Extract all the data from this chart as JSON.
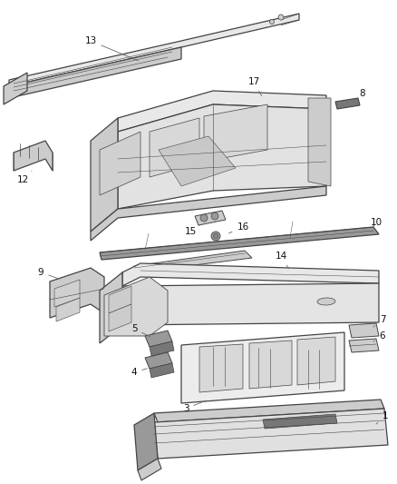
{
  "background_color": "#ffffff",
  "line_color": "#444444",
  "label_color": "#111111",
  "fig_width": 4.38,
  "fig_height": 5.33,
  "dpi": 100,
  "label_fontsize": 7.5,
  "lw_main": 0.9,
  "lw_detail": 0.5,
  "gray_light": "#e8e8e8",
  "gray_mid": "#cccccc",
  "gray_dark": "#999999",
  "gray_darker": "#777777"
}
